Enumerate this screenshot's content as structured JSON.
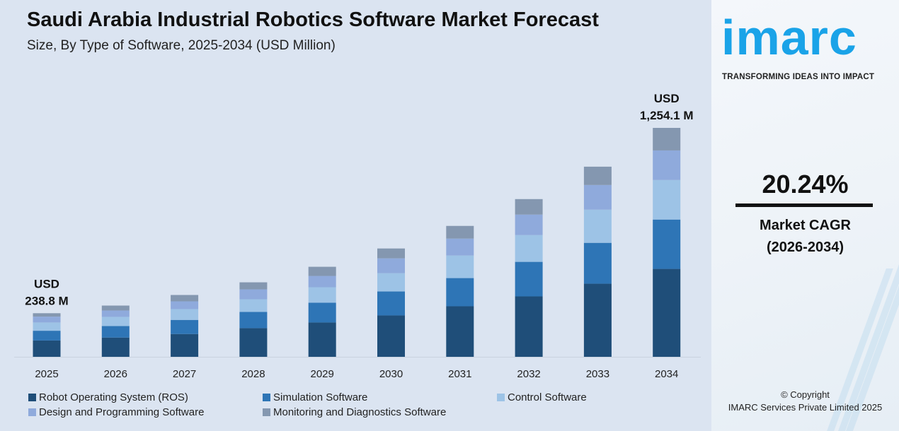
{
  "header": {
    "title": "Saudi Arabia Industrial Robotics Software Market Forecast",
    "subtitle": "Size, By Type of Software, 2025-2034 (USD Million)"
  },
  "chart_data": {
    "type": "bar",
    "stacked": true,
    "title": "Saudi Arabia Industrial Robotics Software Market Forecast",
    "subtitle": "Size, By Type of Software, 2025-2034 (USD Million)",
    "categories": [
      "2025",
      "2026",
      "2027",
      "2028",
      "2029",
      "2030",
      "2031",
      "2032",
      "2033",
      "2034"
    ],
    "series": [
      {
        "name": "Robot Operating System (ROS)",
        "color": "#1f4e79",
        "values": [
          89.4,
          105.6,
          124.9,
          157.1,
          188.0,
          226.6,
          276.8,
          330.9,
          400.4,
          481.6
        ]
      },
      {
        "name": "Simulation Software",
        "color": "#2e75b6",
        "values": [
          53.4,
          63.1,
          77.3,
          88.8,
          108.2,
          131.3,
          154.5,
          189.3,
          224.0,
          270.4
        ]
      },
      {
        "name": "Control Software",
        "color": "#9dc3e6",
        "values": [
          45.3,
          50.2,
          59.2,
          69.5,
          85.0,
          100.4,
          123.6,
          146.8,
          181.6,
          216.3
        ]
      },
      {
        "name": "Design and Programming Software",
        "color": "#8faadc",
        "values": [
          32.0,
          34.8,
          42.5,
          54.1,
          61.8,
          81.1,
          92.7,
          112.0,
          135.2,
          162.2
        ]
      },
      {
        "name": "Monitoring and Diagnostics Software",
        "color": "#8497b0",
        "values": [
          18.7,
          27.0,
          34.8,
          38.6,
          50.2,
          54.1,
          69.5,
          85.0,
          100.4,
          123.6
        ]
      }
    ],
    "ylim": [
      0,
      1254.1
    ],
    "grid": false,
    "legend": "bottom",
    "annotations": [
      {
        "category": "2025",
        "line1": "USD",
        "line2": "238.8 M"
      },
      {
        "category": "2034",
        "line1": "USD",
        "line2": "1,254.1 M"
      }
    ]
  },
  "sidebar": {
    "logo": "imarc",
    "tagline": "TRANSFORMING IDEAS INTO IMPACT",
    "cagr_value": "20.24%",
    "cagr_label": "Market CAGR",
    "cagr_period": "(2026-2034)",
    "copyright": "© Copyright",
    "company": "IMARC Services Private Limited 2025",
    "brand_color": "#1aa3e8"
  }
}
